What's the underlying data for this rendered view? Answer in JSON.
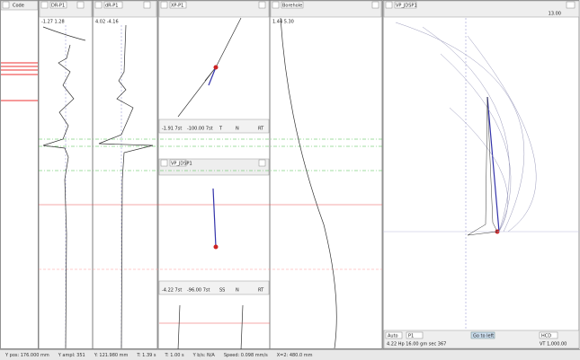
{
  "panels": {
    "code": {
      "title": "Code"
    },
    "trace1": {
      "title": "DR-P1",
      "range": "-1.27  1.28"
    },
    "trace2": {
      "title": "dR-P1",
      "range": "4.02  -4.16"
    },
    "hodo_top": {
      "title": "XP-P1",
      "info_left": "-1.91  7st",
      "info_mid": "-100.00  7st",
      "labels": [
        "T",
        "N",
        "RT"
      ]
    },
    "hodo_bottom": {
      "title": "VP_JDSP1",
      "info_left": "-4.22  7st",
      "info_mid": "-96.00  7st",
      "labels": [
        "SS",
        "N",
        "RT"
      ]
    },
    "borehole": {
      "title": "Borehole",
      "range": "1.44  5.30"
    },
    "polar": {
      "title": "VP_JDSP1",
      "value": "13.00",
      "mode": "Auto",
      "field": "P1",
      "readout": "4.22 Hp    16.00 gm    sec 367",
      "button": "Go to left",
      "right_select": "HCD",
      "right_value": "VT 1,000.00"
    }
  },
  "status_bar": [
    "Y pos: 176.000 mm",
    "Y ampl: 351",
    "Y: 121.980 mm",
    "T: 1.39 s",
    "T: 1.00 s",
    "Y b/s: N/A",
    "Speed: 0.098 mm/s",
    "X=2: 480.0 mm"
  ]
}
